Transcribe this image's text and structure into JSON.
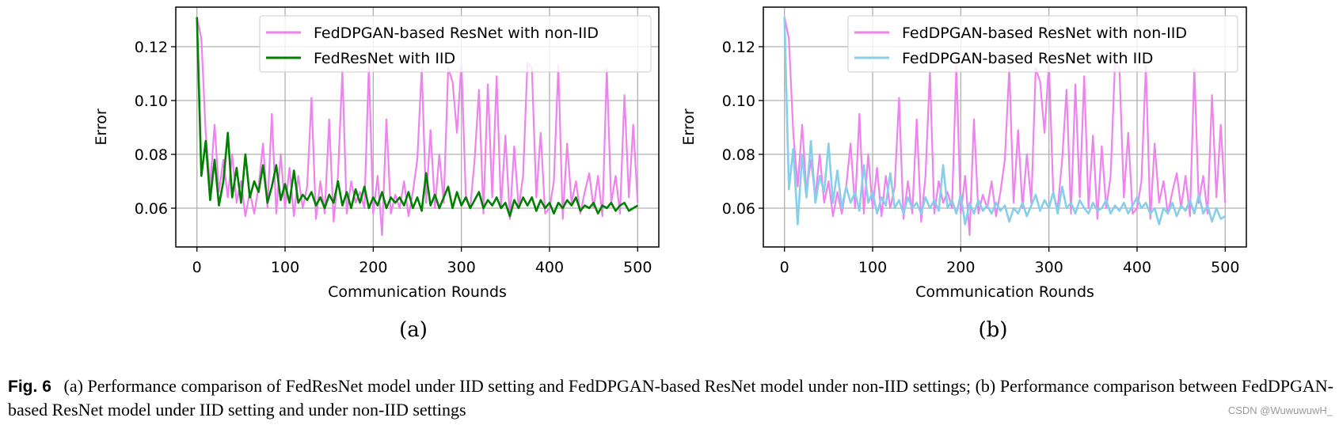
{
  "chart_data": [
    {
      "type": "line",
      "panel_label": "(a)",
      "xlabel": "Communication Rounds",
      "ylabel": "Error",
      "xlim": [
        -24,
        524
      ],
      "ylim": [
        0.0456,
        0.1347
      ],
      "xticks": [
        "0",
        "100",
        "200",
        "300",
        "400",
        "500"
      ],
      "yticks": [
        "0.06",
        "0.08",
        "0.10",
        "0.12"
      ],
      "grid": true,
      "legend_position": "top-right",
      "x_step": 5,
      "series": [
        {
          "name": "FedDPGAN-based ResNet with non-IID",
          "color": "#ee82ee",
          "values": [
            0.131,
            0.123,
            0.088,
            0.068,
            0.091,
            0.066,
            0.078,
            0.064,
            0.08,
            0.062,
            0.07,
            0.057,
            0.066,
            0.058,
            0.068,
            0.084,
            0.06,
            0.095,
            0.058,
            0.08,
            0.06,
            0.075,
            0.057,
            0.072,
            0.06,
            0.068,
            0.101,
            0.056,
            0.07,
            0.058,
            0.093,
            0.055,
            0.072,
            0.111,
            0.058,
            0.07,
            0.062,
            0.066,
            0.06,
            0.113,
            0.058,
            0.072,
            0.05,
            0.093,
            0.058,
            0.065,
            0.06,
            0.07,
            0.057,
            0.066,
            0.078,
            0.112,
            0.062,
            0.089,
            0.06,
            0.08,
            0.062,
            0.112,
            0.107,
            0.088,
            0.114,
            0.065,
            0.06,
            0.078,
            0.104,
            0.058,
            0.106,
            0.064,
            0.109,
            0.06,
            0.087,
            0.056,
            0.083,
            0.06,
            0.072,
            0.114,
            0.112,
            0.064,
            0.088,
            0.058,
            0.06,
            0.07,
            0.113,
            0.056,
            0.084,
            0.062,
            0.07,
            0.058,
            0.066,
            0.073,
            0.06,
            0.072,
            0.057,
            0.112,
            0.062,
            0.072,
            0.058,
            0.102,
            0.064,
            0.091,
            0.062
          ]
        },
        {
          "name": "FedResNet with IID",
          "color": "#008000",
          "values": [
            0.131,
            0.072,
            0.085,
            0.063,
            0.078,
            0.061,
            0.07,
            0.088,
            0.064,
            0.075,
            0.062,
            0.08,
            0.064,
            0.07,
            0.066,
            0.076,
            0.062,
            0.068,
            0.076,
            0.063,
            0.069,
            0.062,
            0.074,
            0.062,
            0.065,
            0.063,
            0.066,
            0.061,
            0.064,
            0.06,
            0.065,
            0.062,
            0.07,
            0.061,
            0.066,
            0.06,
            0.067,
            0.062,
            0.068,
            0.06,
            0.064,
            0.061,
            0.066,
            0.06,
            0.064,
            0.062,
            0.064,
            0.061,
            0.066,
            0.06,
            0.064,
            0.059,
            0.073,
            0.061,
            0.065,
            0.06,
            0.064,
            0.068,
            0.06,
            0.066,
            0.061,
            0.064,
            0.06,
            0.063,
            0.066,
            0.06,
            0.063,
            0.061,
            0.064,
            0.06,
            0.062,
            0.057,
            0.063,
            0.06,
            0.064,
            0.061,
            0.064,
            0.059,
            0.063,
            0.06,
            0.062,
            0.058,
            0.062,
            0.06,
            0.063,
            0.061,
            0.064,
            0.059,
            0.061,
            0.06,
            0.062,
            0.058,
            0.061,
            0.06,
            0.062,
            0.059,
            0.061,
            0.062,
            0.059,
            0.06,
            0.061
          ]
        }
      ]
    },
    {
      "type": "line",
      "panel_label": "(b)",
      "xlabel": "Communication Rounds",
      "ylabel": "Error",
      "xlim": [
        -24,
        524
      ],
      "ylim": [
        0.0456,
        0.1347
      ],
      "xticks": [
        "0",
        "100",
        "200",
        "300",
        "400",
        "500"
      ],
      "yticks": [
        "0.06",
        "0.08",
        "0.10",
        "0.12"
      ],
      "grid": true,
      "legend_position": "top-right",
      "x_step": 5,
      "series": [
        {
          "name": "FedDPGAN-based ResNet with non-IID",
          "color": "#ee82ee",
          "values": [
            0.131,
            0.123,
            0.088,
            0.068,
            0.091,
            0.066,
            0.078,
            0.064,
            0.08,
            0.062,
            0.07,
            0.057,
            0.066,
            0.058,
            0.068,
            0.084,
            0.06,
            0.095,
            0.058,
            0.08,
            0.06,
            0.075,
            0.057,
            0.072,
            0.06,
            0.068,
            0.101,
            0.056,
            0.07,
            0.058,
            0.093,
            0.055,
            0.072,
            0.111,
            0.058,
            0.07,
            0.062,
            0.066,
            0.06,
            0.113,
            0.058,
            0.072,
            0.05,
            0.093,
            0.058,
            0.065,
            0.06,
            0.07,
            0.057,
            0.066,
            0.078,
            0.112,
            0.062,
            0.089,
            0.06,
            0.08,
            0.062,
            0.112,
            0.107,
            0.088,
            0.114,
            0.065,
            0.06,
            0.078,
            0.104,
            0.058,
            0.106,
            0.064,
            0.109,
            0.06,
            0.087,
            0.056,
            0.083,
            0.06,
            0.072,
            0.114,
            0.112,
            0.064,
            0.088,
            0.058,
            0.06,
            0.07,
            0.113,
            0.056,
            0.084,
            0.062,
            0.07,
            0.058,
            0.066,
            0.073,
            0.06,
            0.072,
            0.057,
            0.112,
            0.062,
            0.072,
            0.058,
            0.102,
            0.064,
            0.091,
            0.062
          ]
        },
        {
          "name": "FedDPGAN-based ResNet with IID",
          "color": "#87ceeb",
          "values": [
            0.131,
            0.067,
            0.082,
            0.054,
            0.08,
            0.064,
            0.085,
            0.062,
            0.072,
            0.066,
            0.084,
            0.062,
            0.074,
            0.06,
            0.068,
            0.062,
            0.066,
            0.059,
            0.076,
            0.062,
            0.066,
            0.058,
            0.064,
            0.061,
            0.073,
            0.06,
            0.063,
            0.058,
            0.064,
            0.06,
            0.062,
            0.058,
            0.064,
            0.06,
            0.063,
            0.059,
            0.076,
            0.06,
            0.063,
            0.058,
            0.065,
            0.054,
            0.062,
            0.058,
            0.063,
            0.059,
            0.061,
            0.058,
            0.062,
            0.059,
            0.061,
            0.055,
            0.06,
            0.058,
            0.062,
            0.057,
            0.061,
            0.065,
            0.059,
            0.063,
            0.06,
            0.066,
            0.058,
            0.068,
            0.06,
            0.062,
            0.058,
            0.063,
            0.06,
            0.058,
            0.062,
            0.059,
            0.06,
            0.063,
            0.058,
            0.061,
            0.059,
            0.062,
            0.058,
            0.061,
            0.064,
            0.06,
            0.062,
            0.058,
            0.06,
            0.054,
            0.06,
            0.058,
            0.062,
            0.057,
            0.061,
            0.059,
            0.063,
            0.058,
            0.065,
            0.058,
            0.061,
            0.055,
            0.06,
            0.056,
            0.057
          ]
        }
      ]
    }
  ],
  "caption": {
    "fig_label": "Fig. 6",
    "text": "(a) Performance comparison of FedResNet model under IID setting and FedDPGAN-based ResNet model under non-IID settings; (b) Performance comparison between FedDPGAN-based ResNet model under IID setting and under non-IID settings"
  },
  "watermark": "CSDN @WuwuwuwH_"
}
